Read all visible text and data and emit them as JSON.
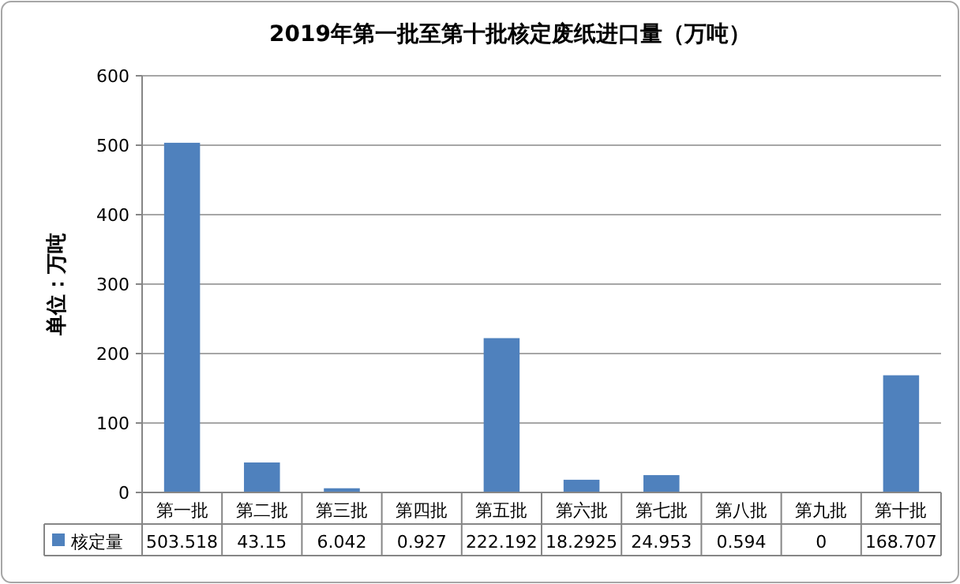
{
  "chart_data": {
    "type": "bar",
    "title": "2019年第一批至第十批核定废纸进口量（万吨）",
    "ylabel": "单位：万吨",
    "categories": [
      "第一批",
      "第二批",
      "第三批",
      "第四批",
      "第五批",
      "第六批",
      "第七批",
      "第八批",
      "第九批",
      "第十批"
    ],
    "series": [
      {
        "name": "核定量",
        "color": "#4f81bd",
        "values": [
          503.518,
          43.15,
          6.042,
          0.927,
          222.192,
          18.2925,
          24.953,
          0.594,
          0,
          168.707
        ]
      }
    ],
    "ylim": [
      0,
      600
    ],
    "yticks": [
      0,
      100,
      200,
      300,
      400,
      500,
      600
    ],
    "grid": "y",
    "legend": "bottom",
    "data_labels": true
  }
}
